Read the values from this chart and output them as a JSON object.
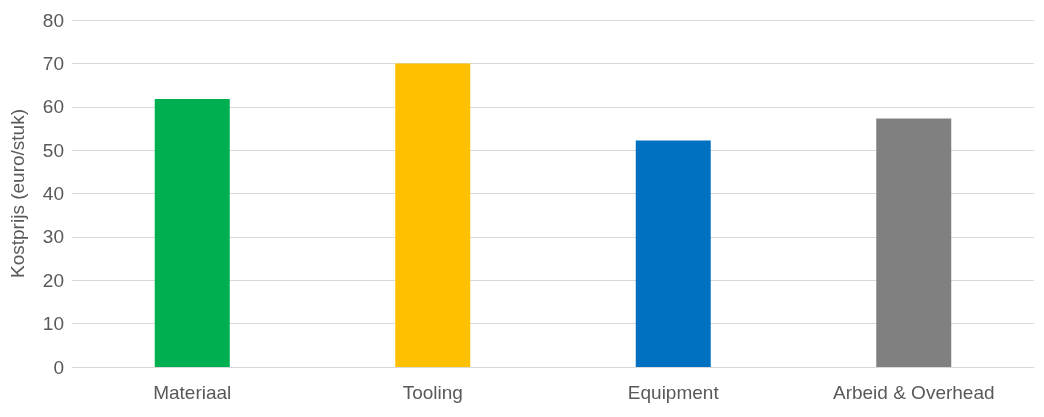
{
  "chart_data": {
    "type": "bar",
    "ylabel": "Kostprijs (euro/stuk)",
    "categories": [
      "Materiaal",
      "Tooling",
      "Equipment",
      "Arbeid & Overhead"
    ],
    "values": [
      61.8,
      70,
      52.2,
      57.3
    ],
    "colors": [
      "#00b050",
      "#ffc000",
      "#0070c0",
      "#808080"
    ],
    "ylim": [
      0,
      80
    ],
    "yticks": [
      0,
      10,
      20,
      30,
      40,
      50,
      60,
      70,
      80
    ],
    "grid": "y"
  }
}
